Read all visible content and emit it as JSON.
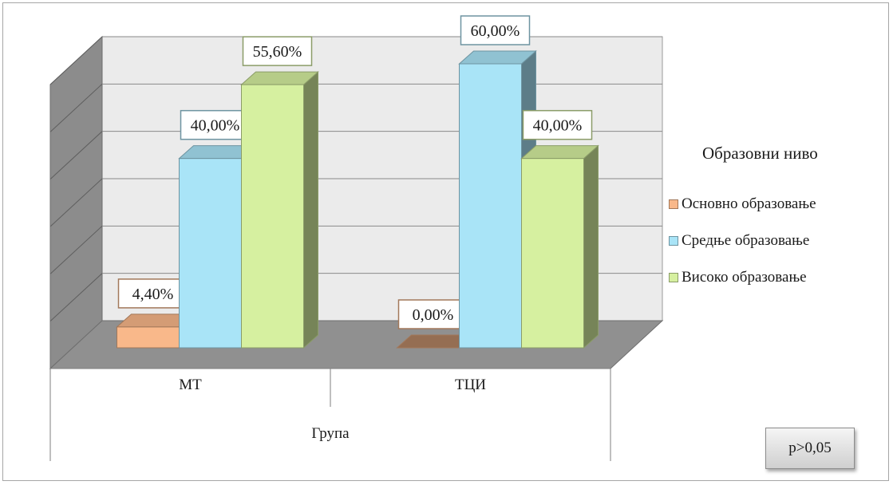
{
  "chart_data": {
    "type": "bar",
    "categories": [
      "МТ",
      "ТЦИ"
    ],
    "xlabel": "Група",
    "ylim": [
      0,
      60
    ],
    "grid": true,
    "legend_title": "Образовни ниво",
    "legend_position": "right",
    "series": [
      {
        "name": "Основно образовање",
        "values": [
          4.4,
          0.0
        ],
        "labels": [
          "4,40%",
          "0,00%"
        ],
        "color": "#f9b88a"
      },
      {
        "name": "Средње образовање",
        "values": [
          40.0,
          60.0
        ],
        "labels": [
          "40,00%",
          "60,00%"
        ],
        "color": "#a9e4f7"
      },
      {
        "name": "Високо образовање",
        "values": [
          55.6,
          40.0
        ],
        "labels": [
          "55,60%",
          "40,00%"
        ],
        "color": "#d6f0a0"
      }
    ]
  },
  "note": "p>0,05"
}
